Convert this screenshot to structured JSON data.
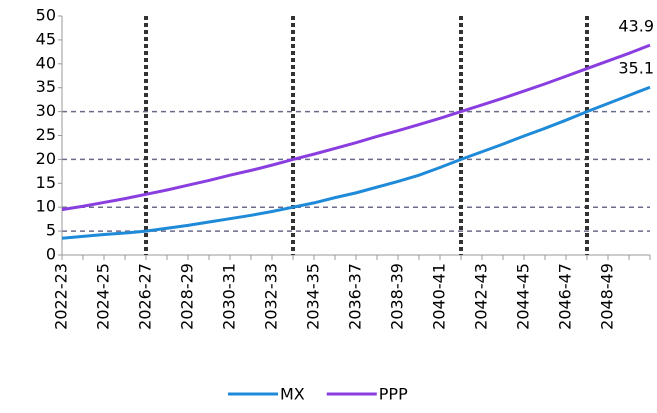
{
  "chart_data": {
    "type": "line",
    "categories": [
      "2022-23",
      null,
      "2024-25",
      null,
      "2026-27",
      null,
      "2028-29",
      null,
      "2030-31",
      null,
      "2032-33",
      null,
      "2034-35",
      null,
      "2036-37",
      null,
      "2038-39",
      null,
      "2040-41",
      null,
      "2042-43",
      null,
      "2044-45",
      null,
      "2046-47",
      null,
      "2048-49",
      null,
      null
    ],
    "series": [
      {
        "name": "MX",
        "color": "#1f8ad8",
        "values": [
          3.5,
          3.9,
          4.3,
          4.6,
          5.0,
          5.6,
          6.2,
          6.9,
          7.6,
          8.3,
          9.1,
          10.0,
          10.9,
          12.0,
          13.0,
          14.2,
          15.4,
          16.7,
          18.3,
          20.0,
          21.6,
          23.2,
          24.9,
          26.5,
          28.2,
          30.0,
          31.7,
          33.4,
          35.1
        ]
      },
      {
        "name": "PPP",
        "color": "#8a3ee0",
        "values": [
          9.5,
          10.2,
          11.0,
          11.8,
          12.7,
          13.6,
          14.6,
          15.6,
          16.7,
          17.7,
          18.8,
          20.0,
          21.1,
          22.3,
          23.5,
          24.8,
          26.0,
          27.3,
          28.6,
          30.0,
          31.4,
          32.8,
          34.3,
          35.8,
          37.4,
          39.0,
          40.6,
          42.2,
          43.9
        ]
      }
    ],
    "ylim": [
      0,
      50
    ],
    "yticks": [
      0,
      5,
      10,
      15,
      20,
      25,
      30,
      35,
      40,
      45,
      50
    ],
    "hlines": [
      5,
      10,
      20,
      30
    ],
    "vlines": [
      4,
      11,
      19,
      25
    ],
    "legend": "bottom"
  }
}
